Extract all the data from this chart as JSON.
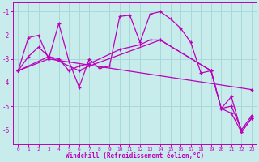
{
  "background_color": "#c8ecec",
  "grid_color": "#a8d8d8",
  "line_color": "#bb00bb",
  "xlabel": "Windchill (Refroidissement éolien,°C)",
  "xlabel_color": "#bb00bb",
  "tick_color": "#bb00bb",
  "ylim": [
    -6.6,
    -0.6
  ],
  "xlim": [
    -0.5,
    23.5
  ],
  "yticks": [
    -6,
    -5,
    -4,
    -3,
    -2,
    -1
  ],
  "xticks": [
    0,
    1,
    2,
    3,
    4,
    5,
    6,
    7,
    8,
    9,
    10,
    11,
    12,
    13,
    14,
    15,
    16,
    17,
    18,
    19,
    20,
    21,
    22,
    23
  ],
  "line1_x": [
    0,
    1,
    2,
    3,
    4,
    5,
    6,
    7,
    8,
    9,
    10,
    11,
    12,
    13,
    14,
    15,
    16,
    17,
    18,
    19,
    20,
    21,
    22,
    23
  ],
  "line1_y": [
    -3.5,
    -2.1,
    -2.0,
    -3.0,
    -1.5,
    -3.1,
    -4.2,
    -3.0,
    -3.4,
    -3.3,
    -1.2,
    -1.15,
    -2.3,
    -1.1,
    -1.0,
    -1.3,
    -1.7,
    -2.3,
    -3.6,
    -3.5,
    -5.1,
    -4.6,
    -6.1,
    -5.5
  ],
  "line2_x": [
    0,
    1,
    2,
    3,
    4,
    5,
    6,
    7,
    10,
    12,
    13,
    14,
    19,
    20,
    21,
    22,
    23
  ],
  "line2_y": [
    -3.5,
    -2.9,
    -2.5,
    -2.9,
    -3.0,
    -3.5,
    -3.3,
    -3.2,
    -2.6,
    -2.4,
    -2.2,
    -2.2,
    -3.5,
    -5.1,
    -5.0,
    -6.0,
    -5.4
  ],
  "line3_x": [
    0,
    3,
    23
  ],
  "line3_y": [
    -3.5,
    -3.0,
    -4.3
  ],
  "line4_x": [
    0,
    3,
    6,
    7,
    14,
    19,
    20,
    21,
    22,
    23
  ],
  "line4_y": [
    -3.5,
    -2.9,
    -3.5,
    -3.3,
    -2.2,
    -3.5,
    -5.1,
    -5.3,
    -6.1,
    -5.5
  ]
}
